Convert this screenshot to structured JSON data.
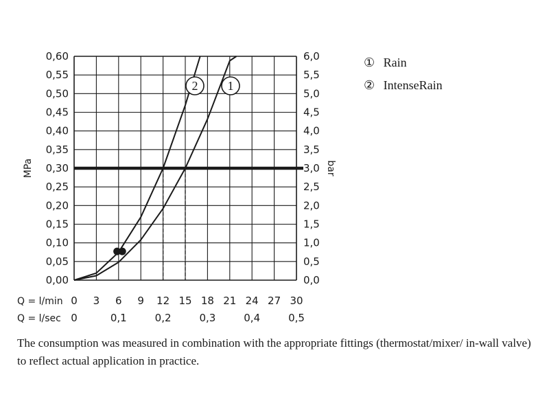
{
  "chart_data": {
    "type": "line",
    "x_label_lpm": "Q = l/min",
    "x_label_lps": "Q = l/sec",
    "y_label_left": "MPa",
    "y_label_right": "bar",
    "x_ticks_lpm": [
      "0",
      "3",
      "6",
      "9",
      "12",
      "15",
      "18",
      "21",
      "24",
      "27",
      "30"
    ],
    "x_ticks_lps": [
      "0",
      "0,1",
      "0,2",
      "0,3",
      "0,4",
      "0,5"
    ],
    "y_ticks_mpa": [
      "0,00",
      "0,05",
      "0,10",
      "0,15",
      "0,20",
      "0,25",
      "0,30",
      "0,35",
      "0,40",
      "0,45",
      "0,50",
      "0,55",
      "0,60"
    ],
    "y_ticks_bar": [
      "0,0",
      "0,5",
      "1,0",
      "1,5",
      "2,0",
      "2,5",
      "3,0",
      "3,5",
      "4,0",
      "4,5",
      "5,0",
      "5,5",
      "6,0"
    ],
    "xlim": [
      0,
      30
    ],
    "ylim": [
      0,
      0.6
    ],
    "grid": true,
    "reference_line": {
      "y": 0.3
    },
    "series": [
      {
        "name": "Rain",
        "marker_label": "1",
        "x": [
          0,
          3,
          6,
          9,
          12,
          15,
          18,
          21,
          21.9
        ],
        "y": [
          0,
          0.012,
          0.048,
          0.108,
          0.192,
          0.3,
          0.432,
          0.588,
          0.6
        ],
        "dashed_drop_x": 15
      },
      {
        "name": "IntenseRain",
        "marker_label": "2",
        "x": [
          0,
          3,
          6,
          9,
          12,
          15,
          17.0
        ],
        "y": [
          0,
          0.019,
          0.075,
          0.169,
          0.3,
          0.469,
          0.6
        ],
        "dashed_drop_x": 12
      }
    ],
    "points": [
      {
        "x": 5.8,
        "y": 0.077
      },
      {
        "x": 6.5,
        "y": 0.077
      }
    ],
    "legend": [
      {
        "symbol": "①",
        "label": "Rain"
      },
      {
        "symbol": "②",
        "label": "IntenseRain"
      }
    ]
  },
  "caption": "The consumption was measured in combination with the appropriate fittings (thermostat/mixer/ in-wall valve) to reflect actual application in practice."
}
